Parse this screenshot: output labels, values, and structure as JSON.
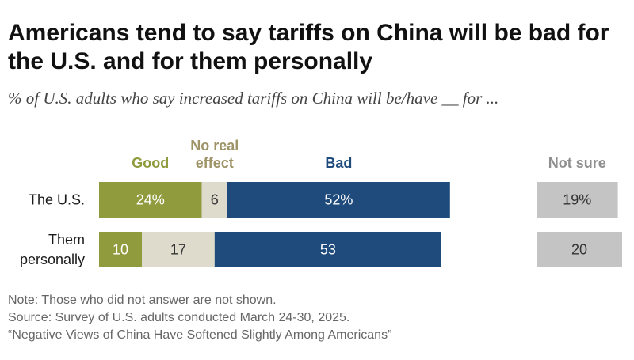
{
  "title": "Americans tend to say tariffs on China will be bad for the U.S. and for them personally",
  "subtitle": "% of U.S. adults who say increased tariffs on China will be/have __ for ...",
  "chart_data": {
    "type": "bar",
    "orientation": "horizontal",
    "stacked": true,
    "categories": [
      [
        "The U.S."
      ],
      [
        "Them",
        "personally"
      ]
    ],
    "series": [
      {
        "name": "Good",
        "header_lines": [
          "Good"
        ],
        "values": [
          24,
          10
        ],
        "labels": [
          "24%",
          "10"
        ],
        "color": "#8f9b3d",
        "label_color": "#ffffff",
        "header_color": "#8f9b3d"
      },
      {
        "name": "No real effect",
        "header_lines": [
          "No real",
          "effect"
        ],
        "values": [
          6,
          17
        ],
        "labels": [
          "6",
          "17"
        ],
        "color": "#dedbcd",
        "label_color": "#333333",
        "header_color": "#9e9468"
      },
      {
        "name": "Bad",
        "header_lines": [
          "Bad"
        ],
        "values": [
          52,
          53
        ],
        "labels": [
          "52%",
          "53"
        ],
        "color": "#1f4a7c",
        "label_color": "#ffffff",
        "header_color": "#1f4a7c"
      }
    ],
    "side_series": {
      "name": "Not sure",
      "header_lines": [
        "Not sure"
      ],
      "values": [
        19,
        20
      ],
      "labels": [
        "19%",
        "20"
      ],
      "color": "#c4c4c4",
      "label_color": "#333333",
      "header_color": "#909090"
    }
  },
  "notes": [
    "Note: Those who did not answer are not shown.",
    "Source: Survey of U.S. adults conducted March 24-30, 2025.",
    "“Negative Views of China Have Softened Slightly Among Americans”"
  ]
}
